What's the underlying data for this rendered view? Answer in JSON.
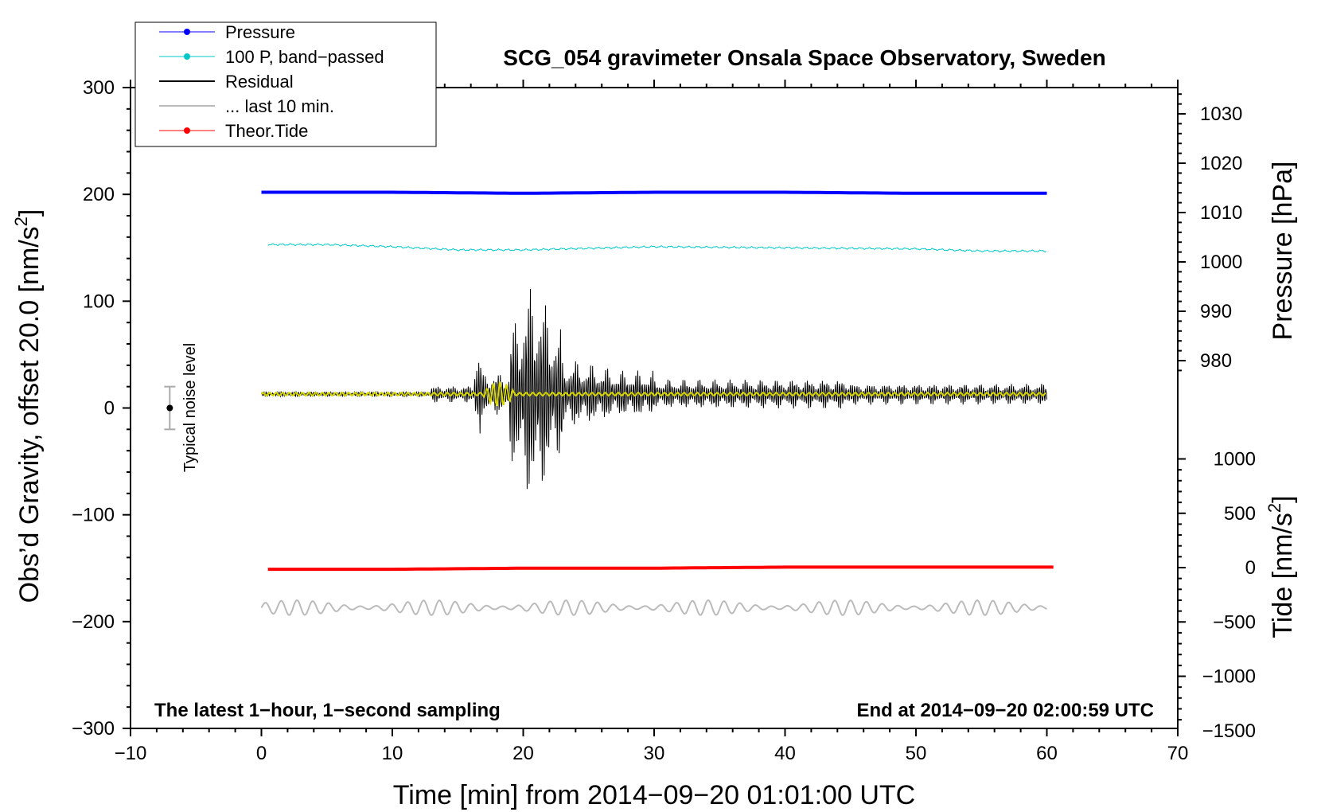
{
  "chart_data": {
    "type": "line",
    "title": "SCG_054 gravimeter Onsala Space Observatory, Sweden",
    "xlabel": "Time [min] from 2014−09−20 01:01:00 UTC",
    "ylabel_left": "Obs'd Gravity, offset 20.0 [nm/s²]",
    "ylabel_left_main": "Obs’d Gravity, offset 20.0 [nm/s",
    "ylabel_left_sup": "2",
    "ylabel_left_end": "]",
    "ylabel_pressure": "Pressure [hPa]",
    "ylabel_tide_main": "Tide [nm/s",
    "ylabel_tide_sup": "2",
    "ylabel_tide_end": "]",
    "xlim": [
      -10,
      70
    ],
    "ylim": [
      -300,
      300
    ],
    "x_ticks": [
      "−10",
      "0",
      "10",
      "20",
      "30",
      "40",
      "50",
      "60",
      "70"
    ],
    "x_tick_values": [
      -10,
      0,
      10,
      20,
      30,
      40,
      50,
      60,
      70
    ],
    "y_ticks": [
      "300",
      "200",
      "100",
      "0",
      "−100",
      "−200",
      "−300"
    ],
    "y_tick_values": [
      300,
      200,
      100,
      0,
      -100,
      -200,
      -300
    ],
    "pressure_ticks": [
      "1030",
      "1020",
      "1010",
      "1000",
      "990",
      "980"
    ],
    "pressure_tick_values": [
      1030,
      1020,
      1010,
      1000,
      990,
      980
    ],
    "tide_ticks": [
      "1000",
      "500",
      "0",
      "−500",
      "−1000",
      "−1500"
    ],
    "tide_tick_values": [
      1000,
      500,
      0,
      -500,
      -1000,
      -1500
    ],
    "legend": [
      {
        "label": "Pressure",
        "color": "#0000ff",
        "marker": true
      },
      {
        "label": "100 P, band−passed",
        "color": "#00c8c8",
        "marker": true
      },
      {
        "label": "Residual",
        "color": "#000000",
        "marker": false
      },
      {
        "label": "... last 10 min.",
        "color": "#bbbbbb",
        "marker": false
      },
      {
        "label": "Theor.Tide",
        "color": "#ff0000",
        "marker": true
      }
    ],
    "legend_position": "top-left",
    "grid": false,
    "series": [
      {
        "name": "Pressure",
        "color": "#0000ff",
        "x": [
          0,
          10,
          20,
          30,
          40,
          50,
          60
        ],
        "y": [
          202,
          202,
          201,
          202,
          202,
          201,
          201
        ]
      },
      {
        "name": "100 P, band−passed",
        "color": "#00c8c8",
        "x": [
          0,
          5,
          10,
          15,
          20,
          30,
          40,
          50,
          55,
          60
        ],
        "y": [
          153,
          153,
          151,
          148,
          148,
          151,
          150,
          149,
          147,
          147
        ]
      },
      {
        "name": "Residual",
        "color": "#000000",
        "x": [
          0,
          13,
          16.5,
          20.8,
          25,
          30,
          40,
          50,
          60
        ],
        "y": [
          13,
          13,
          50,
          110,
          40,
          25,
          25,
          20,
          13
        ]
      },
      {
        "name": "... last 10 min.",
        "color": "#bbbbbb",
        "x": [
          0,
          60
        ],
        "y": [
          -187,
          -187
        ]
      },
      {
        "name": "Theor.Tide",
        "color": "#ff0000",
        "x": [
          0,
          10,
          20,
          30,
          40,
          50,
          60
        ],
        "y": [
          -151,
          -151,
          -150,
          -150,
          -149,
          -149,
          -149
        ]
      }
    ],
    "noise_label": "Typical noise level",
    "noise_level": [
      -20,
      20
    ],
    "note_left": "The latest 1−hour, 1−second sampling",
    "note_right": "End at 2014−09−20 02:00:59 UTC"
  }
}
